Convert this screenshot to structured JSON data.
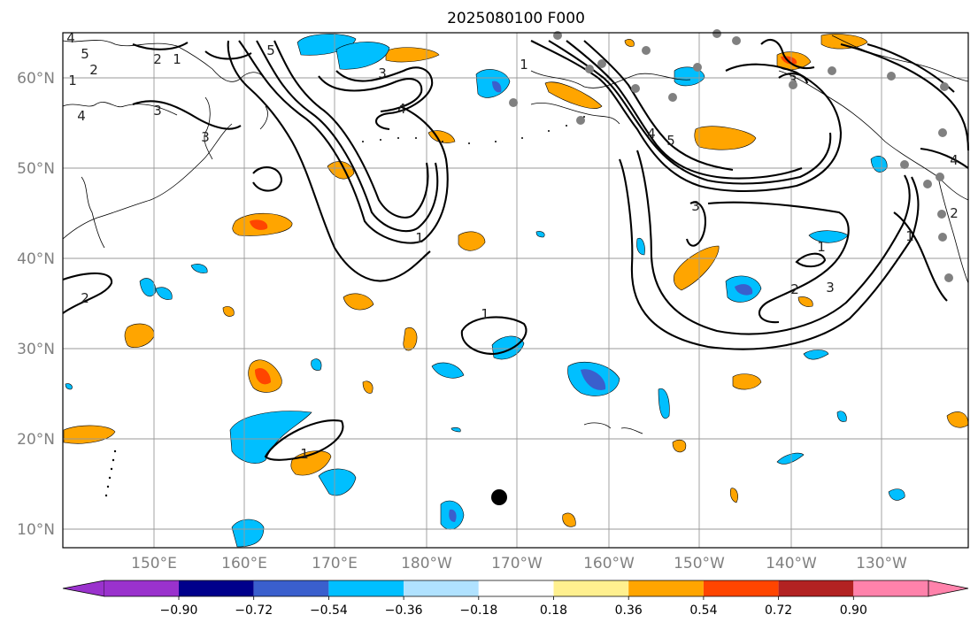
{
  "title": "2025080100 F000",
  "lat_labels": [
    "10°N",
    "20°N",
    "30°N",
    "40°N",
    "50°N",
    "60°N"
  ],
  "lon_labels": [
    "150°E",
    "160°E",
    "170°E",
    "180°W",
    "170°W",
    "160°W",
    "150°W",
    "140°W",
    "130°W"
  ],
  "colorbar": {
    "tick_labels": [
      "−0.90",
      "−0.72",
      "−0.54",
      "−0.36",
      "−0.18",
      "0.18",
      "0.36",
      "0.54",
      "0.72",
      "0.90"
    ],
    "colors": [
      "#9a32cd",
      "#00008b",
      "#3a5fcd",
      "#00bfff",
      "#b0e2ff",
      "#ffffff",
      "#fff08f",
      "#ffa500",
      "#ff4500",
      "#b22222",
      "#ff82ab"
    ]
  },
  "contour_labels": [
    "4",
    "5",
    "2",
    "1",
    "3",
    "4",
    "3",
    "2",
    "1",
    "5",
    "3",
    "4",
    "1",
    "4",
    "5",
    "3",
    "1",
    "3",
    "2",
    "1",
    "2",
    "3",
    "4",
    "1",
    "1",
    "2",
    "1"
  ],
  "station_marker": "tropical-storm-center-dot",
  "colors": {
    "land_gray": "#808080",
    "contour": "#000000",
    "coast": "#000000",
    "grid": "#999999"
  }
}
